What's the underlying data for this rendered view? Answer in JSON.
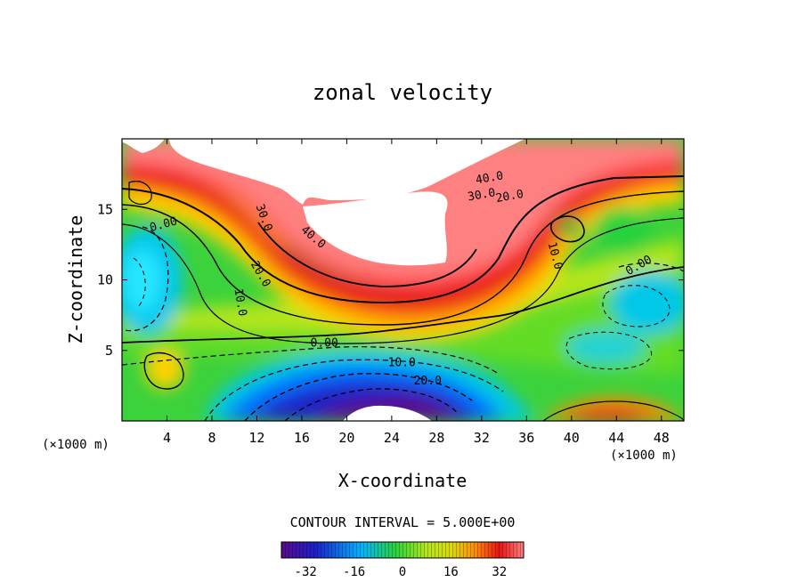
{
  "chart_data": {
    "type": "heatmap",
    "title": "zonal velocity",
    "xlabel": "X-coordinate",
    "ylabel": "Z-coordinate",
    "x_unit_left": "(×1000 m)",
    "x_unit_right": "(×1000 m)",
    "xlim": [
      0,
      50
    ],
    "ylim": [
      0,
      20
    ],
    "x_ticks": [
      4,
      8,
      12,
      16,
      20,
      24,
      28,
      32,
      36,
      40,
      44,
      48
    ],
    "y_ticks": [
      5,
      10,
      15
    ],
    "contour_interval_text": "CONTOUR INTERVAL = 5.000E+00",
    "colorbar": {
      "range": [
        -40,
        40
      ],
      "ticks": [
        -32,
        -16,
        0,
        16,
        32
      ],
      "colormap": "rainbow",
      "colors": [
        "#5a0a8a",
        "#1a20c8",
        "#00b4ff",
        "#28d23c",
        "#dcdc00",
        "#ff8c00",
        "#e81414",
        "#ff8080"
      ]
    },
    "contour_labels": [
      {
        "text": "40.0",
        "x": 32.7,
        "y": 17.2,
        "rot": -10
      },
      {
        "text": "30.0",
        "x": 32.0,
        "y": 16.0,
        "rot": -10
      },
      {
        "text": "20.0",
        "x": 34.5,
        "y": 15.9,
        "rot": -10
      },
      {
        "text": "30.0",
        "x": 12.6,
        "y": 14.4,
        "rot": 70
      },
      {
        "text": "40.0",
        "x": 17.0,
        "y": 13.0,
        "rot": 40
      },
      {
        "text": "0.00",
        "x": 3.7,
        "y": 13.9,
        "rot": -15
      },
      {
        "text": "20.0",
        "x": 12.3,
        "y": 10.4,
        "rot": 60
      },
      {
        "text": "10.0",
        "x": 10.5,
        "y": 8.4,
        "rot": 80
      },
      {
        "text": "10.0",
        "x": 38.5,
        "y": 11.7,
        "rot": 75
      },
      {
        "text": "0.00",
        "x": 46.0,
        "y": 11.0,
        "rot": -30
      },
      {
        "text": "0.00",
        "x": 18.0,
        "y": 5.5,
        "rot": 0
      },
      {
        "text": "10.0",
        "x": 24.9,
        "y": 4.1,
        "rot": 0
      },
      {
        "text": "20.0",
        "x": 27.2,
        "y": 2.8,
        "rot": 0
      }
    ]
  }
}
